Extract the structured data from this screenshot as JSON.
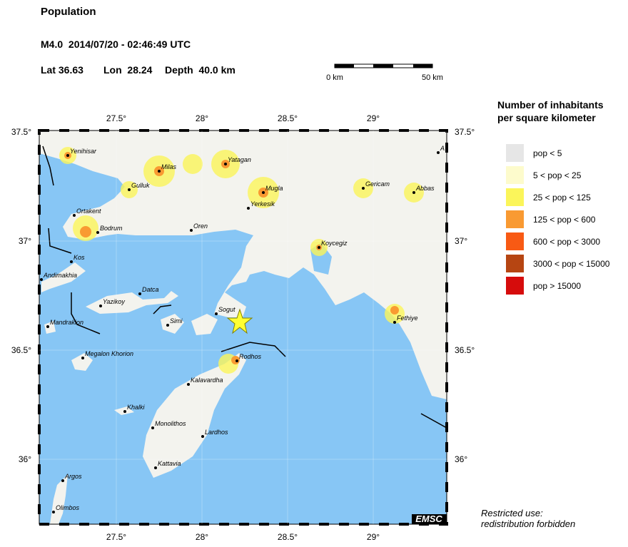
{
  "header": {
    "title": "Population",
    "event": "M4.0  2014/07/20 - 02:46:49 UTC",
    "lat": "Lat 36.63",
    "lon": "Lon  28.24",
    "depth": "Depth  40.0 km"
  },
  "scale_bar": {
    "start": "0 km",
    "end": "50 km"
  },
  "map": {
    "lon_ticks": [
      {
        "value": 27.5,
        "label": "27.5°"
      },
      {
        "value": 28,
        "label": "28°"
      },
      {
        "value": 28.5,
        "label": "28.5°"
      },
      {
        "value": 29,
        "label": "29°"
      }
    ],
    "lat_ticks": [
      {
        "value": 37.5,
        "label": "37.5°"
      },
      {
        "value": 37,
        "label": "37°"
      },
      {
        "value": 36.5,
        "label": "36.5°"
      },
      {
        "value": 36,
        "label": "36°"
      }
    ],
    "cities": [
      "Yenihisar",
      "Milas",
      "Yatagan",
      "Gulluk",
      "Mugla",
      "Gericam",
      "Abbas",
      "A",
      "Yerkesik",
      "Ortakent",
      "Bodrum",
      "Oren",
      "Koycegiz",
      "Kos",
      "Andimakhia",
      "Datca",
      "Yazikoy",
      "Sogut",
      "Simi",
      "Fethiye",
      "Mandrakion",
      "Megalon Khorion",
      "Rodhos",
      "Kalavardha",
      "Khalki",
      "Monolithos",
      "Lardhos",
      "Kattavia",
      "Argos",
      "Olimbos"
    ],
    "badge": "EMSC"
  },
  "legend": {
    "title_line1": "Number of inhabitants",
    "title_line2": "per square kilometer",
    "items": [
      {
        "label": "pop < 5",
        "color": "#e6e6e6"
      },
      {
        "label": "5 < pop < 25",
        "color": "#fdfbcc"
      },
      {
        "label": "25 < pop < 125",
        "color": "#fbf55a"
      },
      {
        "label": "125 < pop < 600",
        "color": "#f99a32"
      },
      {
        "label": "600 < pop < 3000",
        "color": "#f85a14"
      },
      {
        "label": "3000 < pop < 15000",
        "color": "#b64512"
      },
      {
        "label": "pop > 15000",
        "color": "#d60c0c"
      }
    ]
  },
  "footer": {
    "line1": "Restricted use:",
    "line2": "redistribution forbidden"
  }
}
